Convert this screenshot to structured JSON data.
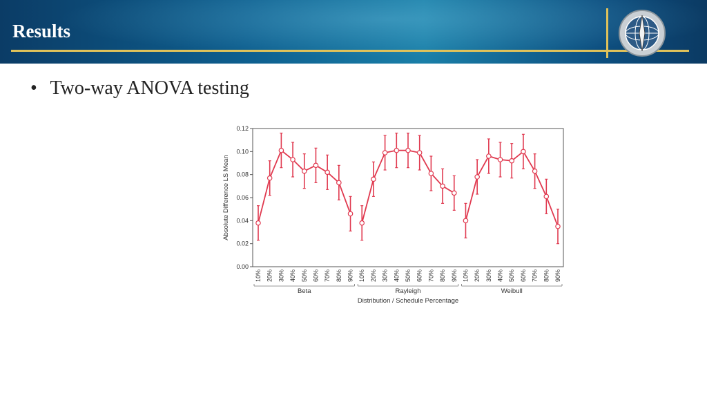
{
  "header": {
    "title": "Results"
  },
  "bullet": {
    "text": "Two-way ANOVA testing",
    "marker": "•"
  },
  "colors": {
    "series": "#e0394f",
    "header_dark": "#0b3c66",
    "accent_gold": "#e0c25a"
  },
  "chart_data": {
    "type": "line",
    "title": "",
    "xlabel": "Distribution / Schedule Percentage",
    "ylabel": "Absolute Difference LS Mean",
    "ylim": [
      0,
      0.12
    ],
    "yticks": [
      "0.00",
      "0.02",
      "0.04",
      "0.06",
      "0.08",
      "0.10",
      "0.12"
    ],
    "groups": [
      {
        "name": "Beta",
        "categories": [
          "10%",
          "20%",
          "30%",
          "40%",
          "50%",
          "60%",
          "70%",
          "80%",
          "90%"
        ],
        "values": [
          0.038,
          0.077,
          0.101,
          0.093,
          0.083,
          0.088,
          0.082,
          0.073,
          0.046
        ],
        "lower": [
          0.023,
          0.062,
          0.086,
          0.078,
          0.068,
          0.073,
          0.067,
          0.058,
          0.031
        ],
        "upper": [
          0.053,
          0.092,
          0.116,
          0.108,
          0.098,
          0.103,
          0.097,
          0.088,
          0.061
        ]
      },
      {
        "name": "Rayleigh",
        "categories": [
          "10%",
          "20%",
          "30%",
          "40%",
          "50%",
          "60%",
          "70%",
          "80%",
          "90%"
        ],
        "values": [
          0.038,
          0.076,
          0.099,
          0.101,
          0.101,
          0.099,
          0.081,
          0.07,
          0.064
        ],
        "lower": [
          0.023,
          0.061,
          0.084,
          0.086,
          0.086,
          0.084,
          0.066,
          0.055,
          0.049
        ],
        "upper": [
          0.053,
          0.091,
          0.114,
          0.116,
          0.116,
          0.114,
          0.096,
          0.085,
          0.079
        ]
      },
      {
        "name": "Weibull",
        "categories": [
          "10%",
          "20%",
          "30%",
          "40%",
          "50%",
          "60%",
          "70%",
          "80%",
          "90%"
        ],
        "values": [
          0.04,
          0.078,
          0.096,
          0.093,
          0.092,
          0.1,
          0.083,
          0.061,
          0.035
        ],
        "lower": [
          0.025,
          0.063,
          0.081,
          0.078,
          0.077,
          0.085,
          0.068,
          0.046,
          0.02
        ],
        "upper": [
          0.055,
          0.093,
          0.111,
          0.108,
          0.107,
          0.115,
          0.098,
          0.076,
          0.05
        ]
      }
    ],
    "grid": false,
    "legend": "none"
  }
}
